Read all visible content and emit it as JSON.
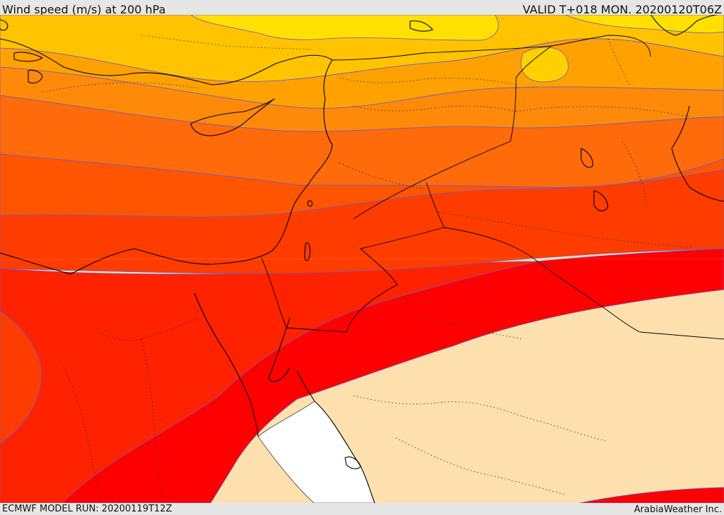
{
  "header": {
    "title": "Wind speed (m/s) at 200 hPa",
    "valid": "VALID T+018 MON. 20200120T06Z"
  },
  "footer": {
    "model_run": "ECMWF MODEL RUN: 20200119T12Z",
    "credit": "ArabiaWeather Inc."
  },
  "map": {
    "field": "wind speed",
    "level": "200 hPa",
    "units": "m/s",
    "colors": {
      "band_1": "#ffe000",
      "band_2": "#ffc300",
      "band_3": "#ffa100",
      "band_4": "#ff8a0a",
      "band_5": "#ff6a0a",
      "band_6": "#ff5500",
      "band_7": "#ff3c00",
      "band_8": "#ff2200",
      "band_9": "#ff0000",
      "low_speed": "#fde0ae",
      "calm": "#ffffff",
      "isotach_line": "#6a5acd",
      "coastline": "#000000"
    }
  }
}
